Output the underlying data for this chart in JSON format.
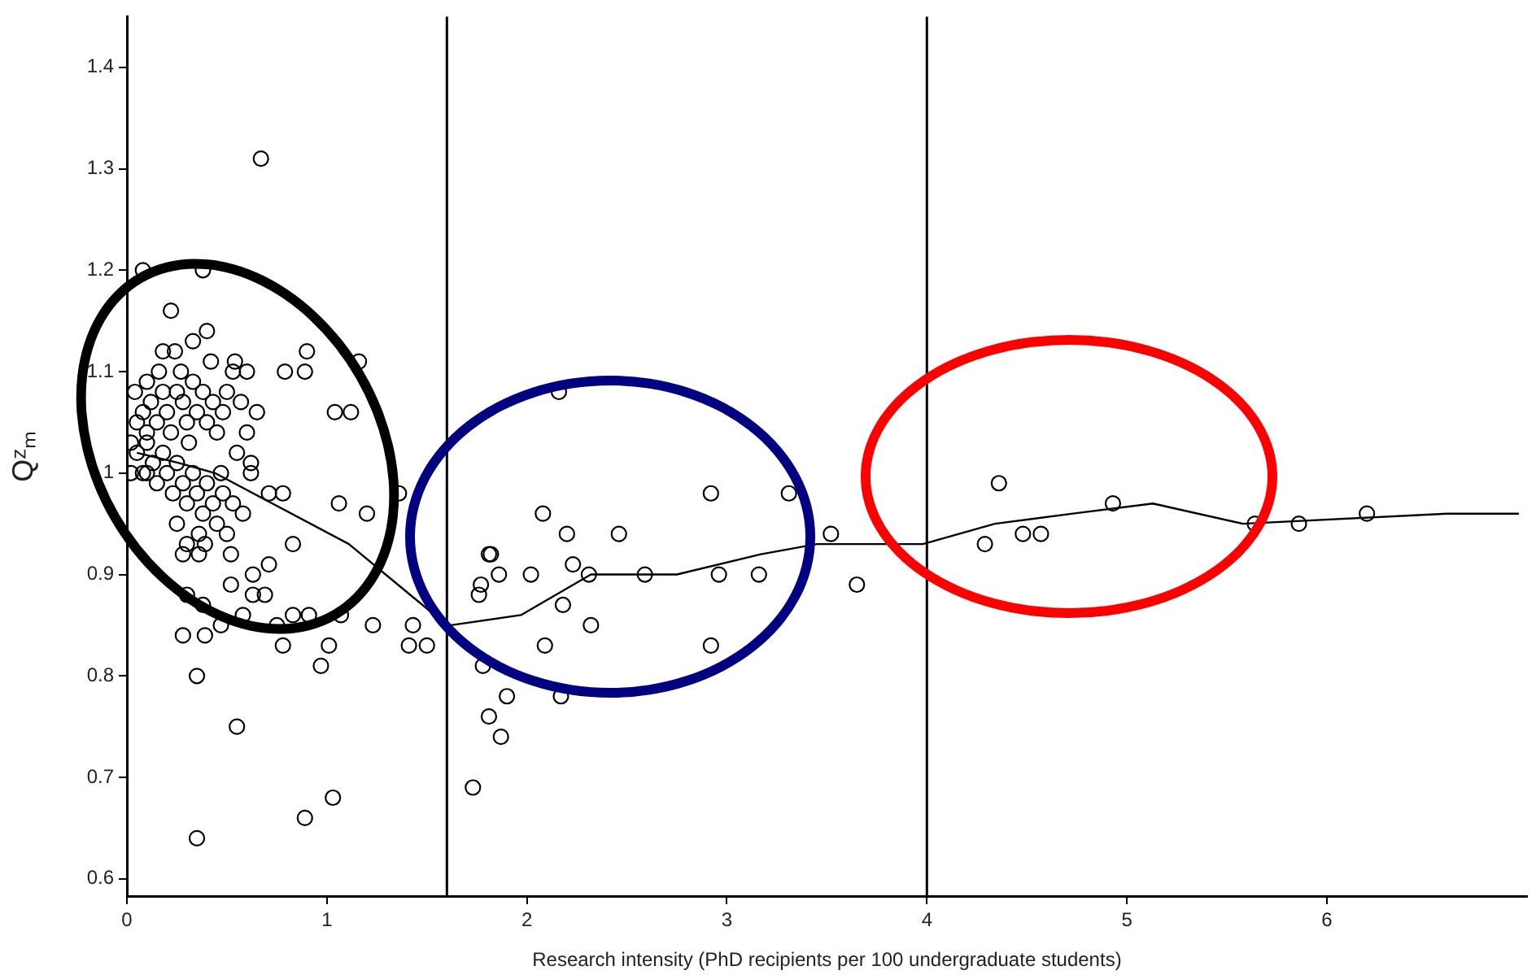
{
  "chart_data": {
    "type": "scatter",
    "xlabel": "Research intensity (PhD recipients per 100 undergraduate students)",
    "ylabel": "Qᶻₘ",
    "xlim": [
      0,
      7
    ],
    "ylim": [
      0.583,
      1.45
    ],
    "xticks": [
      0,
      1,
      2,
      3,
      4,
      5,
      6
    ],
    "yticks": [
      0.6,
      0.7,
      0.8,
      0.9,
      1,
      1.1,
      1.2,
      1.3,
      1.4
    ],
    "grid": false,
    "legend": false,
    "marker": "circle",
    "ref_lines": [
      {
        "axis": "x",
        "value": 1.6,
        "color": "#000000"
      },
      {
        "axis": "x",
        "value": 4,
        "color": "#000000"
      }
    ],
    "series": [
      {
        "color": "#000000",
        "x": [
          0.67,
          0.08,
          0.38,
          0.22,
          0.33,
          0.4,
          0.18,
          0.24,
          0.54,
          0.6,
          0.79,
          0.89,
          0.9,
          1.16,
          1.04,
          1.12,
          0.53,
          1.06,
          1.2,
          1.36,
          0.78,
          0.71,
          0.83,
          0.52,
          0.63,
          0.71,
          0.52,
          0.63,
          0.69,
          0.3,
          0.38,
          0.28,
          0.39,
          0.47,
          0.58,
          0.75,
          0.83,
          0.91,
          1.07,
          1.23,
          0.78,
          1.01,
          0.97,
          1.43,
          1.41,
          1.5,
          0.35,
          0.55,
          1.73,
          1.03,
          0.89,
          0.35,
          1.81,
          1.77,
          1.86,
          0.28,
          0.36,
          0.39,
          0.62,
          0.02,
          0.1,
          2.16,
          2.92,
          3.31,
          2.08,
          2.2,
          2.46,
          3.52,
          1.82,
          2.02,
          2.23,
          2.31,
          2.59,
          2.96,
          3.16,
          3.65,
          1.76,
          2.18,
          2.32,
          2.09,
          2.92,
          1.78,
          2.17,
          1.9,
          1.81,
          1.87,
          4.36,
          4.29,
          4.48,
          4.57,
          4.93,
          5.64,
          5.86,
          6.2,
          0.05,
          0.08,
          0.1,
          0.12,
          0.15,
          0.18,
          0.2,
          0.22,
          0.25,
          0.28,
          0.3,
          0.33,
          0.35,
          0.38,
          0.4,
          0.43,
          0.45,
          0.48,
          0.5,
          0.05,
          0.08,
          0.1,
          0.13,
          0.15,
          0.18,
          0.2,
          0.23,
          0.25,
          0.28,
          0.3,
          0.33,
          0.35,
          0.38,
          0.4,
          0.43,
          0.45,
          0.48,
          0.5,
          0.55,
          0.6,
          0.58,
          0.65,
          0.1,
          0.16,
          0.27,
          0.31,
          0.02,
          0.04,
          0.42,
          0.47,
          0.53,
          0.36,
          0.3,
          0.25,
          0.57,
          0.62
        ],
        "values": [
          1.31,
          1.2,
          1.2,
          1.16,
          1.13,
          1.14,
          1.12,
          1.12,
          1.11,
          1.1,
          1.1,
          1.1,
          1.12,
          1.11,
          1.06,
          1.06,
          1.1,
          0.97,
          0.96,
          0.98,
          0.98,
          0.98,
          0.93,
          0.92,
          0.9,
          0.91,
          0.89,
          0.88,
          0.88,
          0.88,
          0.87,
          0.84,
          0.84,
          0.85,
          0.86,
          0.85,
          0.86,
          0.86,
          0.86,
          0.85,
          0.83,
          0.83,
          0.81,
          0.85,
          0.83,
          0.83,
          0.8,
          0.75,
          0.69,
          0.68,
          0.66,
          0.64,
          0.92,
          0.89,
          0.9,
          0.92,
          0.92,
          0.93,
          1.0,
          1.0,
          1.0,
          1.08,
          0.98,
          0.98,
          0.96,
          0.94,
          0.94,
          0.94,
          0.92,
          0.9,
          0.91,
          0.9,
          0.9,
          0.9,
          0.9,
          0.89,
          0.88,
          0.87,
          0.85,
          0.83,
          0.83,
          0.81,
          0.78,
          0.78,
          0.76,
          0.74,
          0.99,
          0.93,
          0.94,
          0.94,
          0.97,
          0.95,
          0.95,
          0.96,
          1.05,
          1.06,
          1.04,
          1.07,
          1.05,
          1.08,
          1.06,
          1.04,
          1.08,
          1.07,
          1.05,
          1.09,
          1.06,
          1.08,
          1.05,
          1.07,
          1.04,
          1.06,
          1.08,
          1.02,
          1.0,
          1.03,
          1.01,
          0.99,
          1.02,
          1.0,
          0.98,
          1.01,
          0.99,
          0.97,
          1.0,
          0.98,
          0.96,
          0.99,
          0.97,
          0.95,
          0.98,
          0.94,
          1.02,
          1.04,
          0.96,
          1.06,
          1.09,
          1.1,
          1.1,
          1.03,
          1.03,
          1.08,
          1.11,
          1.0,
          0.97,
          0.94,
          0.93,
          0.95,
          1.07,
          1.01
        ]
      },
      {
        "type": "line",
        "color": "#000000",
        "marker": "none",
        "x": [
          0.05,
          0.26,
          0.44,
          1.11,
          1.6,
          1.62,
          1.97,
          2.32,
          2.75,
          3.17,
          3.45,
          3.95,
          3.98,
          4.34,
          4.73,
          5.13,
          5.58,
          6.6,
          6.96
        ],
        "values": [
          1.02,
          1.01,
          1.0,
          0.93,
          0.85,
          0.85,
          0.86,
          0.9,
          0.9,
          0.92,
          0.93,
          0.93,
          0.93,
          0.95,
          0.96,
          0.97,
          0.95,
          0.96,
          0.96
        ]
      }
    ]
  }
}
